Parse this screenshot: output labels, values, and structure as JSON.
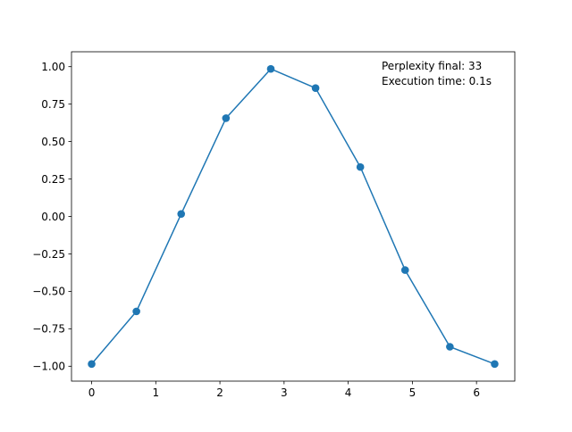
{
  "chart_data": {
    "type": "line",
    "title": "",
    "xlabel": "",
    "ylabel": "",
    "xlim": [
      -0.314,
      6.597
    ],
    "ylim": [
      -1.0995,
      1.0995
    ],
    "x_ticks": [
      0,
      1,
      2,
      3,
      4,
      5,
      6
    ],
    "y_ticks": [
      -1.0,
      -0.75,
      -0.5,
      -0.25,
      0.0,
      0.25,
      0.5,
      0.75,
      1.0
    ],
    "x_tick_labels": [
      "0",
      "1",
      "2",
      "3",
      "4",
      "5",
      "6"
    ],
    "y_tick_labels": [
      "−1.00",
      "−0.75",
      "−0.50",
      "−0.25",
      "0.00",
      "0.25",
      "0.50",
      "0.75",
      "1.00"
    ],
    "grid": false,
    "series": [
      {
        "color": "#1f77b4",
        "marker": "circle",
        "x": [
          0.0,
          0.698,
          1.396,
          2.094,
          2.793,
          3.491,
          4.189,
          4.887,
          5.585,
          6.283
        ],
        "values": [
          -0.985,
          -0.634,
          0.017,
          0.656,
          0.985,
          0.857,
          0.33,
          -0.358,
          -0.87,
          -0.985
        ]
      }
    ],
    "annotations": [
      {
        "text": "Perplexity final: 33",
        "position": "top-right"
      },
      {
        "text": "Execution time: 0.1s",
        "position": "top-right"
      }
    ]
  }
}
